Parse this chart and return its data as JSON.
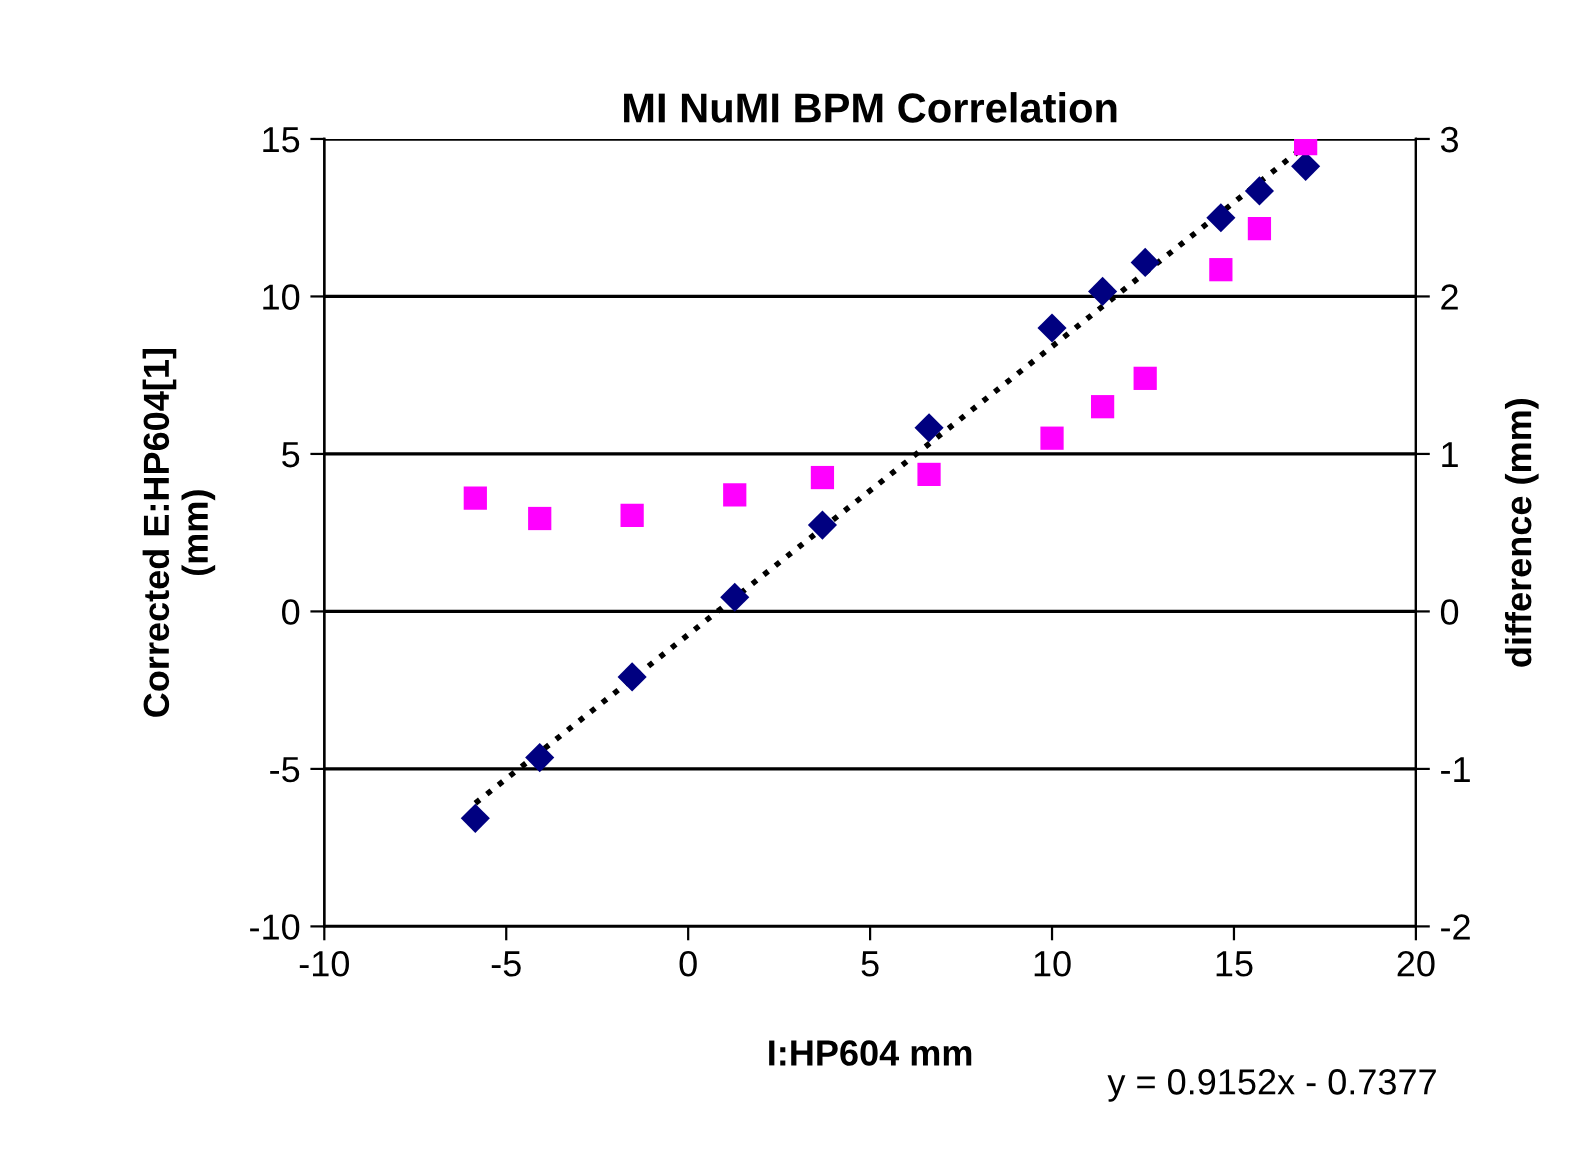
{
  "chart_data": {
    "type": "scatter",
    "title": "MI NuMI BPM Correlation",
    "xlabel": "I:HP604 mm",
    "ylabel": "Corrected E:HP604[1]\n(mm)",
    "y2label": "difference (mm)",
    "x": [
      -5.85,
      -4.08,
      -1.54,
      1.28,
      3.69,
      6.62,
      10.0,
      11.39,
      12.56,
      14.64,
      15.7,
      16.97
    ],
    "series": [
      {
        "color": "#000080",
        "marker": "diamond",
        "values": [
          -6.57,
          -4.64,
          -2.08,
          0.45,
          2.74,
          5.83,
          9.0,
          10.16,
          11.08,
          12.5,
          13.35,
          14.13
        ]
      },
      {
        "color": "#ff00ff",
        "marker": "square",
        "axis": "y2",
        "values": [
          0.72,
          0.59,
          0.61,
          0.74,
          0.85,
          0.87,
          1.1,
          1.3,
          1.48,
          2.17,
          2.43,
          2.97
        ]
      },
      {
        "type": "line",
        "color": "#000000",
        "line_style": "dotted",
        "marker": "none",
        "x": [
          -5.85,
          16.97
        ],
        "values": [
          -6.09,
          14.79
        ]
      }
    ],
    "xlim": [
      -10,
      20
    ],
    "xticks": [
      -10,
      -5,
      0,
      5,
      10,
      15,
      20
    ],
    "ylim": [
      -10,
      15
    ],
    "yticks": [
      -10,
      -5,
      0,
      5,
      10,
      15
    ],
    "y2lim": [
      -2,
      3
    ],
    "y2ticks": [
      -2,
      -1,
      0,
      1,
      2,
      3
    ],
    "grid": "y",
    "legend": false,
    "annotations": [
      "y = 0.9152x - 0.7377"
    ]
  }
}
